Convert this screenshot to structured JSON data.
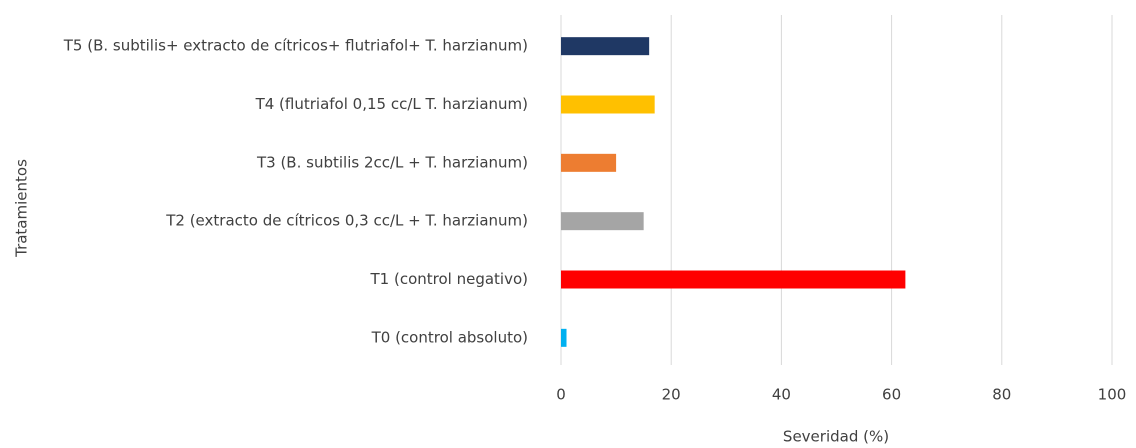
{
  "chart_data": {
    "type": "barh",
    "categories": [
      "T5 (B. subtilis+ extracto de cítricos+ flutriafol+ T. harzianum)",
      "T4 (flutriafol 0,15 cc/L T. harzianum)",
      "T3 (B. subtilis 2cc/L + T. harzianum)",
      "T2 (extracto de cítricos 0,3 cc/L + T. harzianum)",
      "T1 (control negativo)",
      "T0 (control absoluto)"
    ],
    "values": [
      16,
      17,
      10,
      15,
      62.5,
      1
    ],
    "colors": [
      "#1f3864",
      "#ffc000",
      "#ed7d31",
      "#a5a5a5",
      "#ff0000",
      "#00b0f0"
    ],
    "xlabel": "Severidad (%)",
    "ylabel": "Tratamientos",
    "xlim": [
      0,
      100
    ],
    "xticks": [
      0,
      20,
      40,
      60,
      80,
      100
    ],
    "grid": true
  }
}
